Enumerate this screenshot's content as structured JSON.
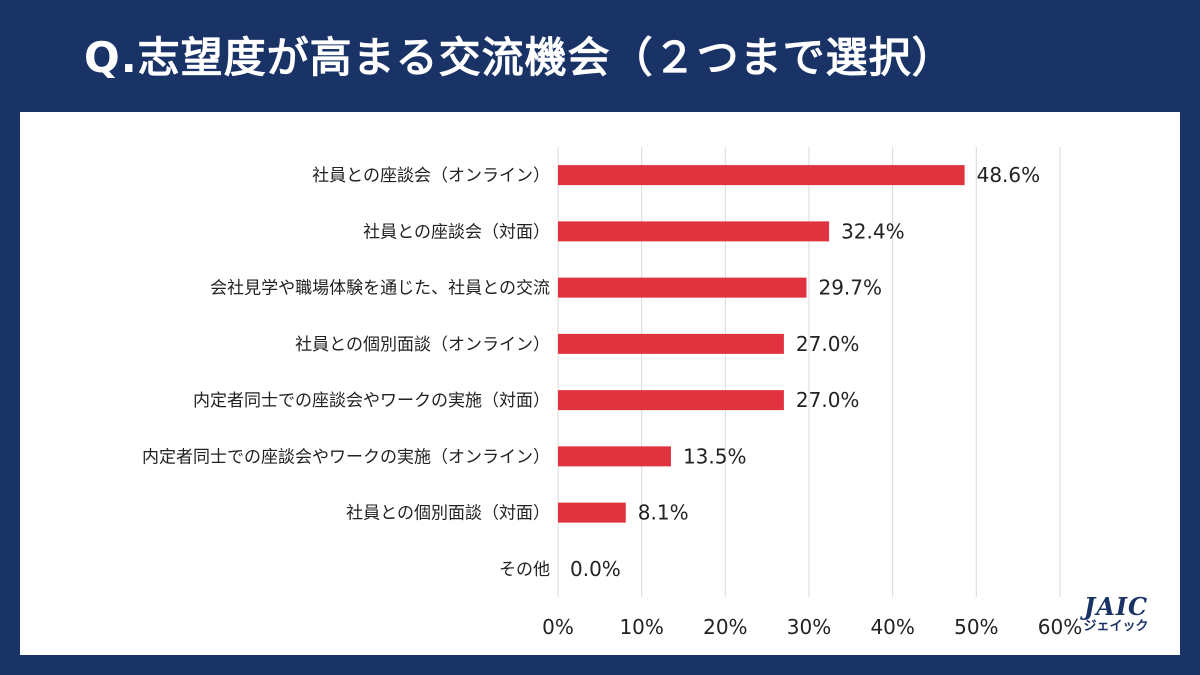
{
  "header": {
    "title": "Q.志望度が高まる交流機会（２つまで選択）"
  },
  "logo": {
    "main": "JAIC",
    "sub": "ジェイック"
  },
  "colors": {
    "background": "#1a3367",
    "bar": "#e0323f",
    "panel": "#ffffff"
  },
  "chart_data": {
    "type": "bar",
    "orientation": "horizontal",
    "categories": [
      "社員との座談会（オンライン）",
      "社員との座談会（対面）",
      "会社見学や職場体験を通じた、社員との交流",
      "社員との個別面談（オンライン）",
      "内定者同士での座談会やワークの実施（対面）",
      "内定者同士での座談会やワークの実施（オンライン）",
      "社員との個別面談（対面）",
      "その他"
    ],
    "values": [
      48.6,
      32.4,
      29.7,
      27.0,
      27.0,
      13.5,
      8.1,
      0.0
    ],
    "value_labels": [
      "48.6%",
      "32.4%",
      "29.7%",
      "27.0%",
      "27.0%",
      "13.5%",
      "8.1%",
      "0.0%"
    ],
    "xlim": [
      0,
      60
    ],
    "x_ticks": [
      "0%",
      "10%",
      "20%",
      "30%",
      "40%",
      "50%",
      "60%"
    ],
    "grid": true,
    "legend": "none"
  }
}
